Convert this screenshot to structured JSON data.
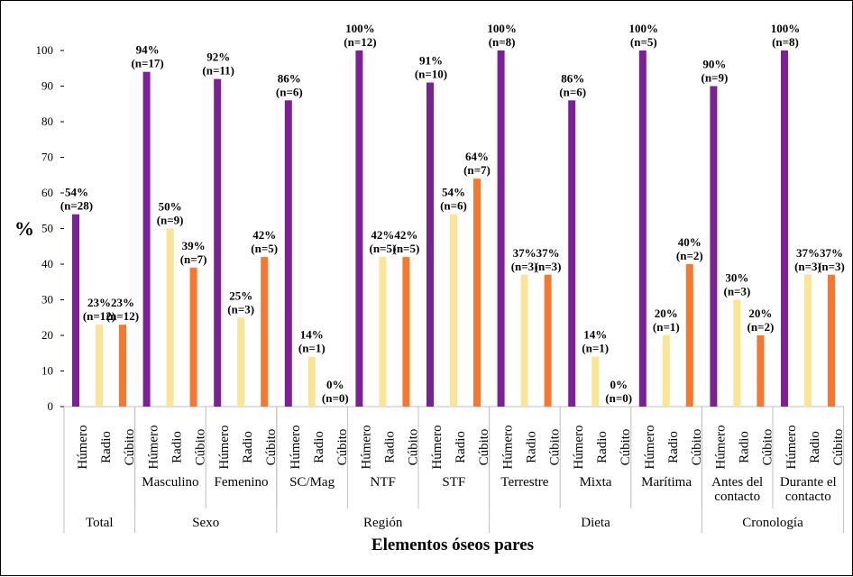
{
  "chart_data": {
    "type": "bar",
    "title": "",
    "xlabel": "Elementos óseos pares",
    "ylabel": "%",
    "ylim": [
      0,
      100
    ],
    "yticks": [
      0,
      10,
      20,
      30,
      40,
      50,
      60,
      70,
      80,
      90,
      100
    ],
    "grid": false,
    "legend": "none",
    "colors": {
      "Húmero": "#7B2195",
      "Radio": "#FBE496",
      "Cúbito": "#F8772F"
    },
    "groups": [
      {
        "name": "Total",
        "subs": [
          {
            "name": "",
            "bars": [
              {
                "element": "Húmero",
                "value": 54,
                "pct": "54%",
                "n": "(n=28)"
              },
              {
                "element": "Radio",
                "value": 23,
                "pct": "23%",
                "n": "(n=12)"
              },
              {
                "element": "Cúbito",
                "value": 23,
                "pct": "23%",
                "n": "(n=12)"
              }
            ]
          }
        ]
      },
      {
        "name": "Sexo",
        "subs": [
          {
            "name": "Masculino",
            "bars": [
              {
                "element": "Húmero",
                "value": 94,
                "pct": "94%",
                "n": "(n=17)"
              },
              {
                "element": "Radio",
                "value": 50,
                "pct": "50%",
                "n": "(n=9)"
              },
              {
                "element": "Cúbito",
                "value": 39,
                "pct": "39%",
                "n": "(n=7)"
              }
            ]
          },
          {
            "name": "Femenino",
            "bars": [
              {
                "element": "Húmero",
                "value": 92,
                "pct": "92%",
                "n": "(n=11)"
              },
              {
                "element": "Radio",
                "value": 25,
                "pct": "25%",
                "n": "(n=3)"
              },
              {
                "element": "Cúbito",
                "value": 42,
                "pct": "42%",
                "n": "(n=5)"
              }
            ]
          }
        ]
      },
      {
        "name": "Región",
        "subs": [
          {
            "name": "SC/Mag",
            "bars": [
              {
                "element": "Húmero",
                "value": 86,
                "pct": "86%",
                "n": "(n=6)"
              },
              {
                "element": "Radio",
                "value": 14,
                "pct": "14%",
                "n": "(n=1)"
              },
              {
                "element": "Cúbito",
                "value": 0,
                "pct": "0%",
                "n": "(n=0)"
              }
            ]
          },
          {
            "name": "NTF",
            "bars": [
              {
                "element": "Húmero",
                "value": 100,
                "pct": "100%",
                "n": "(n=12)"
              },
              {
                "element": "Radio",
                "value": 42,
                "pct": "42%",
                "n": "(n=5)"
              },
              {
                "element": "Cúbito",
                "value": 42,
                "pct": "42%",
                "n": "(n=5)"
              }
            ]
          },
          {
            "name": "STF",
            "bars": [
              {
                "element": "Húmero",
                "value": 91,
                "pct": "91%",
                "n": "(n=10)"
              },
              {
                "element": "Radio",
                "value": 54,
                "pct": "54%",
                "n": "(n=6)"
              },
              {
                "element": "Cúbito",
                "value": 64,
                "pct": "64%",
                "n": "(n=7)"
              }
            ]
          }
        ]
      },
      {
        "name": "Dieta",
        "subs": [
          {
            "name": "Terrestre",
            "bars": [
              {
                "element": "Húmero",
                "value": 100,
                "pct": "100%",
                "n": "(n=8)"
              },
              {
                "element": "Radio",
                "value": 37,
                "pct": "37%",
                "n": "(n=3)"
              },
              {
                "element": "Cúbito",
                "value": 37,
                "pct": "37%",
                "n": "(n=3)"
              }
            ]
          },
          {
            "name": "Mixta",
            "bars": [
              {
                "element": "Húmero",
                "value": 86,
                "pct": "86%",
                "n": "(n=6)"
              },
              {
                "element": "Radio",
                "value": 14,
                "pct": "14%",
                "n": "(n=1)"
              },
              {
                "element": "Cúbito",
                "value": 0,
                "pct": "0%",
                "n": "(n=0)"
              }
            ]
          },
          {
            "name": "Marítima",
            "bars": [
              {
                "element": "Húmero",
                "value": 100,
                "pct": "100%",
                "n": "(n=5)"
              },
              {
                "element": "Radio",
                "value": 20,
                "pct": "20%",
                "n": "(n=1)"
              },
              {
                "element": "Cúbito",
                "value": 40,
                "pct": "40%",
                "n": "(n=2)"
              }
            ]
          }
        ]
      },
      {
        "name": "Cronología",
        "subs": [
          {
            "name": "Antes del contacto",
            "bars": [
              {
                "element": "Húmero",
                "value": 90,
                "pct": "90%",
                "n": "(n=9)"
              },
              {
                "element": "Radio",
                "value": 30,
                "pct": "30%",
                "n": "(n=3)"
              },
              {
                "element": "Cúbito",
                "value": 20,
                "pct": "20%",
                "n": "(n=2)"
              }
            ]
          },
          {
            "name": "Durante el contacto",
            "bars": [
              {
                "element": "Húmero",
                "value": 100,
                "pct": "100%",
                "n": "(n=8)"
              },
              {
                "element": "Radio",
                "value": 37,
                "pct": "37%",
                "n": "(n=3)"
              },
              {
                "element": "Cúbito",
                "value": 37,
                "pct": "37%",
                "n": "(n=3)"
              }
            ]
          }
        ]
      }
    ]
  }
}
